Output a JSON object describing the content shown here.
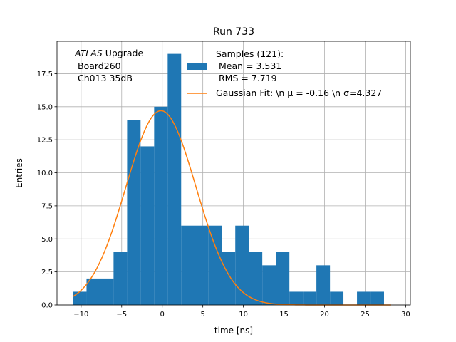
{
  "chart_data": {
    "type": "bar",
    "title": "Run 733",
    "xlabel": "time [ns]",
    "ylabel": "Entries",
    "xlim": [
      -12.97,
      30.58
    ],
    "ylim": [
      0,
      19.95
    ],
    "grid": true,
    "xticks": [
      -10,
      -5,
      0,
      5,
      10,
      15,
      20,
      25,
      30
    ],
    "xtick_labels": [
      "−10",
      "−5",
      "0",
      "5",
      "10",
      "15",
      "20",
      "25",
      "30"
    ],
    "yticks": [
      0.0,
      2.5,
      5.0,
      7.5,
      10.0,
      12.5,
      15.0,
      17.5
    ],
    "ytick_labels": [
      "0.0",
      "2.5",
      "5.0",
      "7.5",
      "10.0",
      "12.5",
      "15.0",
      "17.5"
    ],
    "annotation": {
      "italic_prefix": "ATLAS",
      "line1_rest": " Upgrade",
      "line2": "Board260",
      "line3": "Ch013 35dB"
    },
    "histogram": {
      "name": "Samples (121):",
      "legend_lines": [
        "Samples (121):",
        "Mean = 3.531",
        "RMS = 7.719"
      ],
      "color": "#1f77b4",
      "bin_edges": [
        -11.0,
        -9.33,
        -7.67,
        -6.0,
        -4.33,
        -2.67,
        -1.0,
        0.67,
        2.33,
        4.0,
        5.67,
        7.33,
        9.0,
        10.67,
        12.33,
        14.0,
        15.67,
        17.33,
        19.0,
        20.67,
        22.33,
        24.0,
        25.67,
        27.33
      ],
      "counts": [
        1,
        2,
        2,
        4,
        14,
        12,
        15,
        19,
        6,
        6,
        6,
        4,
        6,
        4,
        3,
        4,
        1,
        1,
        3,
        1,
        0,
        1,
        1
      ]
    },
    "fit": {
      "name": "Gaussian Fit",
      "legend_label": "Gaussian Fit: \\n μ = -0.16 \\n σ=4.327",
      "color": "#ff7f0e",
      "mu": -0.16,
      "sigma": 4.327,
      "amplitude": 14.7,
      "x_range": [
        -11.0,
        28.2
      ]
    }
  }
}
